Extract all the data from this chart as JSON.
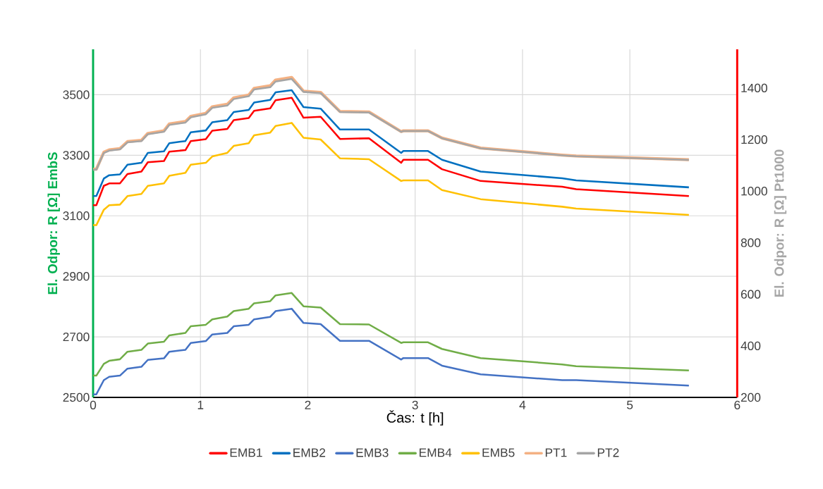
{
  "chart_data": {
    "type": "line",
    "xlabel": "Čas: t [h]",
    "ylabel": "El. Odpor: R [Ω] EmbS",
    "y2label": "El. Odpor: R [Ω] Pt1000",
    "x": [
      0,
      0.03,
      0.1,
      0.15,
      0.25,
      0.32,
      0.45,
      0.51,
      0.66,
      0.71,
      0.86,
      0.91,
      1.05,
      1.11,
      1.25,
      1.31,
      1.45,
      1.5,
      1.65,
      1.7,
      1.85,
      1.96,
      2.12,
      2.3,
      2.57,
      2.87,
      2.89,
      3.12,
      3.25,
      3.61,
      4.37,
      4.5,
      5.55
    ],
    "series": [
      {
        "name": "EMB1",
        "color": "#ff0000",
        "values": [
          3135,
          3135,
          3199,
          3207,
          3207,
          3238,
          3246,
          3277,
          3281,
          3312,
          3317,
          3347,
          3353,
          3381,
          3387,
          3416,
          3423,
          3447,
          3455,
          3482,
          3490,
          3424,
          3427,
          3354,
          3356,
          3275,
          3285,
          3285,
          3254,
          3215,
          3196,
          3188,
          3165
        ]
      },
      {
        "name": "EMB2",
        "color": "#0070c0",
        "values": [
          3165,
          3165,
          3223,
          3234,
          3237,
          3269,
          3275,
          3308,
          3313,
          3340,
          3347,
          3376,
          3382,
          3409,
          3416,
          3443,
          3450,
          3474,
          3483,
          3508,
          3515,
          3459,
          3454,
          3385,
          3385,
          3308,
          3314,
          3314,
          3285,
          3246,
          3224,
          3217,
          3194
        ]
      },
      {
        "name": "EMB3",
        "color": "#4472c4",
        "values": [
          2510,
          2510,
          2557,
          2568,
          2572,
          2595,
          2601,
          2624,
          2629,
          2651,
          2657,
          2680,
          2686,
          2708,
          2713,
          2735,
          2740,
          2758,
          2766,
          2785,
          2793,
          2746,
          2742,
          2687,
          2687,
          2625,
          2630,
          2630,
          2605,
          2576,
          2557,
          2557,
          2539
        ]
      },
      {
        "name": "EMB4",
        "color": "#70ad47",
        "values": [
          2572,
          2572,
          2611,
          2621,
          2626,
          2651,
          2657,
          2678,
          2684,
          2705,
          2713,
          2735,
          2740,
          2758,
          2767,
          2785,
          2793,
          2811,
          2818,
          2837,
          2845,
          2801,
          2797,
          2742,
          2741,
          2680,
          2682,
          2682,
          2660,
          2630,
          2609,
          2603,
          2589
        ]
      },
      {
        "name": "EMB5",
        "color": "#ffc000",
        "values": [
          3069,
          3069,
          3120,
          3135,
          3137,
          3165,
          3172,
          3199,
          3207,
          3232,
          3242,
          3269,
          3275,
          3296,
          3308,
          3331,
          3340,
          3366,
          3375,
          3397,
          3407,
          3358,
          3352,
          3290,
          3287,
          3215,
          3217,
          3217,
          3185,
          3155,
          3130,
          3124,
          3103
        ]
      },
      {
        "name": "PT1",
        "color": "#f4b183",
        "axis": "y2",
        "values": [
          1085,
          1085,
          1151,
          1160,
          1165,
          1192,
          1197,
          1224,
          1234,
          1261,
          1270,
          1290,
          1302,
          1327,
          1337,
          1362,
          1373,
          1399,
          1409,
          1431,
          1441,
          1388,
          1383,
          1309,
          1307,
          1231,
          1234,
          1234,
          1206,
          1167,
          1140,
          1136,
          1122
        ]
      },
      {
        "name": "PT2",
        "color": "#a5a5a5",
        "axis": "y2",
        "values": [
          1083,
          1083,
          1148,
          1157,
          1162,
          1189,
          1194,
          1221,
          1230,
          1257,
          1266,
          1286,
          1298,
          1323,
          1332,
          1357,
          1368,
          1394,
          1403,
          1425,
          1435,
          1385,
          1380,
          1307,
          1305,
          1230,
          1233,
          1233,
          1205,
          1166,
          1139,
          1135,
          1121
        ]
      }
    ],
    "xlim": [
      0,
      6
    ],
    "xticks": [
      0,
      1,
      2,
      3,
      4,
      5,
      6
    ],
    "ylim": [
      2500,
      3650
    ],
    "yticks": [
      2500,
      2700,
      2900,
      3100,
      3300,
      3500
    ],
    "y2lim": [
      200,
      1550
    ],
    "y2ticks": [
      200,
      400,
      600,
      800,
      1000,
      1200,
      1400
    ],
    "grid": true,
    "legend": "bottom"
  }
}
